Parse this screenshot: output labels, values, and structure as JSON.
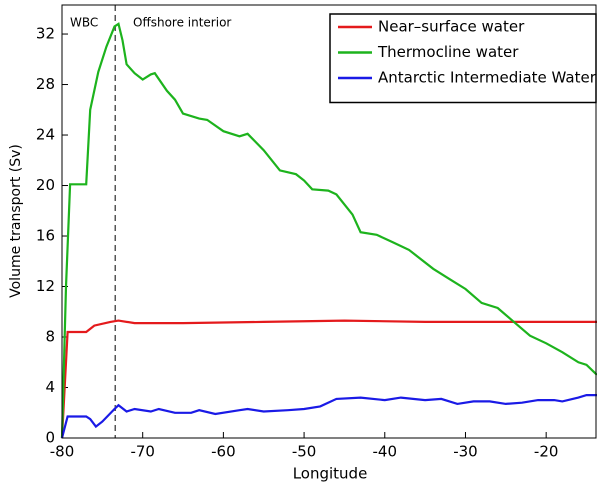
{
  "chart_data": {
    "type": "line",
    "xlabel": "Longitude",
    "ylabel": "Volume transport (Sv)",
    "xlim": [
      -80,
      -13.7
    ],
    "ylim": [
      0,
      34.3
    ],
    "xticks": [
      -80,
      -70,
      -60,
      -50,
      -40,
      -30,
      -20
    ],
    "yticks": [
      0,
      4,
      8,
      12,
      16,
      20,
      24,
      28,
      32
    ],
    "vline": -73.4,
    "annotations": [
      {
        "text": "WBC"
      },
      {
        "text": "Offshore interior"
      }
    ],
    "legend": "upper right",
    "series": [
      {
        "name": "Near–surface water",
        "color": "#e41a1c",
        "x": [
          -80,
          -79.3,
          -77,
          -76,
          -74,
          -73,
          -71,
          -65,
          -55,
          -45,
          -35,
          -13.7
        ],
        "values": [
          0,
          8.4,
          8.4,
          8.9,
          9.2,
          9.3,
          9.1,
          9.1,
          9.2,
          9.3,
          9.2,
          9.2
        ]
      },
      {
        "name": "Thermocline water",
        "color": "#1db31d",
        "x": [
          -80,
          -79.5,
          -79,
          -77,
          -76.5,
          -75.5,
          -74.5,
          -73.5,
          -73,
          -72.5,
          -72,
          -71,
          -70,
          -69,
          -68.5,
          -67,
          -66,
          -65,
          -63,
          -62,
          -60,
          -58,
          -57,
          -55,
          -53,
          -51,
          -50,
          -49,
          -47,
          -46,
          -44,
          -43,
          -41,
          -39,
          -37,
          -36,
          -34,
          -32,
          -30,
          -28,
          -26,
          -24,
          -22,
          -20,
          -18,
          -16,
          -15,
          -13.7
        ],
        "values": [
          0,
          12,
          20.1,
          20.1,
          26,
          29,
          31,
          32.6,
          32.8,
          31.5,
          29.6,
          28.9,
          28.4,
          28.8,
          28.9,
          27.5,
          26.8,
          25.7,
          25.3,
          25.2,
          24.3,
          23.9,
          24.1,
          22.8,
          21.2,
          20.9,
          20.4,
          19.7,
          19.6,
          19.3,
          17.7,
          16.3,
          16.1,
          15.5,
          14.9,
          14.4,
          13.4,
          12.6,
          11.8,
          10.7,
          10.3,
          9.2,
          8.1,
          7.5,
          6.8,
          6.0,
          5.8,
          5.0
        ]
      },
      {
        "name": "Antarctic Intermediate Water",
        "color": "#1a1ae6",
        "x": [
          -80,
          -79.3,
          -77,
          -76.5,
          -75.8,
          -75,
          -73.5,
          -73,
          -72,
          -71,
          -69,
          -68,
          -66,
          -64,
          -63,
          -61,
          -58,
          -57,
          -55,
          -52,
          -50,
          -48,
          -46,
          -43,
          -40,
          -38,
          -35,
          -33,
          -31,
          -29,
          -27,
          -25,
          -23,
          -21,
          -19,
          -18,
          -16,
          -15,
          -13.7
        ],
        "values": [
          0,
          1.7,
          1.7,
          1.5,
          0.9,
          1.3,
          2.3,
          2.6,
          2.1,
          2.3,
          2.1,
          2.3,
          2.0,
          2.0,
          2.2,
          1.9,
          2.2,
          2.3,
          2.1,
          2.2,
          2.3,
          2.5,
          3.1,
          3.2,
          3.0,
          3.2,
          3.0,
          3.1,
          2.7,
          2.9,
          2.9,
          2.7,
          2.8,
          3.0,
          3.0,
          2.9,
          3.2,
          3.4,
          3.4
        ]
      }
    ]
  }
}
